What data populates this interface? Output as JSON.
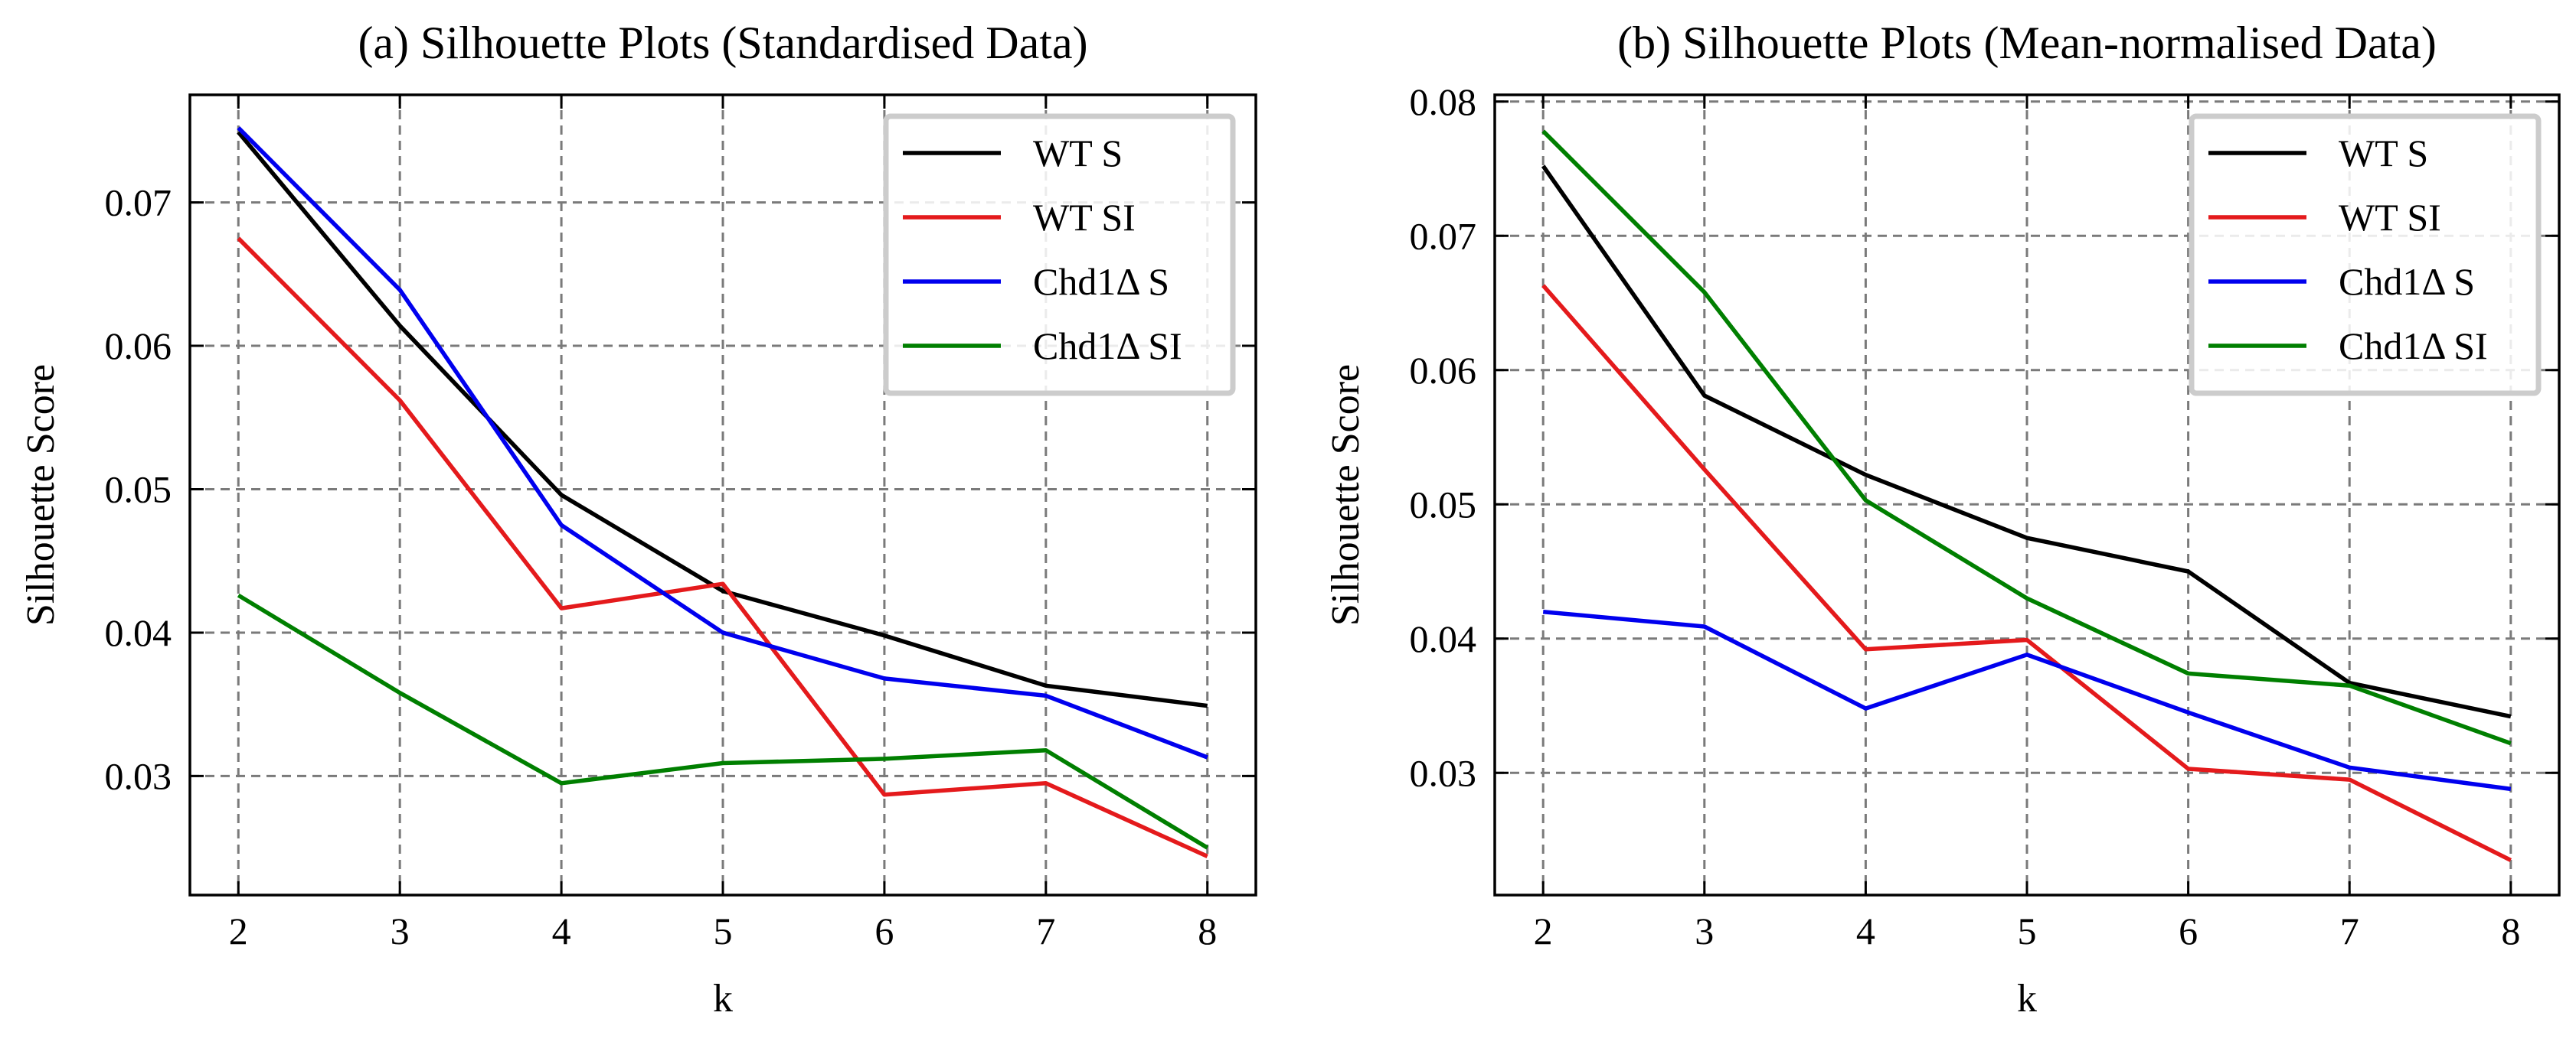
{
  "chart_data": [
    {
      "type": "line",
      "title": "(a) Silhouette Plots (Standardised Data)",
      "xlabel": "k",
      "ylabel": "Silhouette Score",
      "x": [
        2,
        3,
        4,
        5,
        6,
        7,
        8
      ],
      "xlim": [
        1.7,
        8.3
      ],
      "ylim": [
        0.0217,
        0.0775
      ],
      "xticks": [
        "2",
        "3",
        "4",
        "5",
        "6",
        "7",
        "8"
      ],
      "yticks": [
        "0.03",
        "0.04",
        "0.05",
        "0.06",
        "0.07"
      ],
      "grid": true,
      "legend_position": "upper right",
      "series": [
        {
          "name": "WT S",
          "color": "#000000",
          "values": [
            0.0749,
            0.0614,
            0.0496,
            0.0429,
            0.0398,
            0.0363,
            0.0349
          ]
        },
        {
          "name": "WT SI",
          "color": "#e41a1c",
          "values": [
            0.0675,
            0.0562,
            0.0417,
            0.0434,
            0.0287,
            0.0295,
            0.0244
          ]
        },
        {
          "name": "Chd1Δ S",
          "color": "#0000ee",
          "values": [
            0.0752,
            0.0639,
            0.0475,
            0.04,
            0.0368,
            0.0356,
            0.0313
          ]
        },
        {
          "name": "Chd1Δ SI",
          "color": "#007f00",
          "values": [
            0.0426,
            0.0358,
            0.0295,
            0.0309,
            0.0312,
            0.0318,
            0.025
          ]
        }
      ]
    },
    {
      "type": "line",
      "title": "(b) Silhouette Plots (Mean-normalised Data)",
      "xlabel": "k",
      "ylabel": "Silhouette Score",
      "x": [
        2,
        3,
        4,
        5,
        6,
        7,
        8
      ],
      "xlim": [
        1.7,
        8.3
      ],
      "ylim": [
        0.0209,
        0.0805
      ],
      "xticks": [
        "2",
        "3",
        "4",
        "5",
        "6",
        "7",
        "8"
      ],
      "yticks": [
        "0.03",
        "0.04",
        "0.05",
        "0.06",
        "0.07",
        "0.08"
      ],
      "grid": true,
      "legend_position": "upper right",
      "series": [
        {
          "name": "WT S",
          "color": "#000000",
          "values": [
            0.0752,
            0.0581,
            0.0522,
            0.0475,
            0.045,
            0.0367,
            0.0342
          ]
        },
        {
          "name": "WT SI",
          "color": "#e41a1c",
          "values": [
            0.0663,
            0.0526,
            0.0392,
            0.0399,
            0.0303,
            0.0295,
            0.0235
          ]
        },
        {
          "name": "Chd1Δ S",
          "color": "#0000ee",
          "values": [
            0.042,
            0.0409,
            0.0348,
            0.0388,
            0.0345,
            0.0304,
            0.0288
          ]
        },
        {
          "name": "Chd1Δ SI",
          "color": "#007f00",
          "values": [
            0.0778,
            0.0658,
            0.0503,
            0.043,
            0.0374,
            0.0365,
            0.0322
          ]
        }
      ]
    }
  ]
}
